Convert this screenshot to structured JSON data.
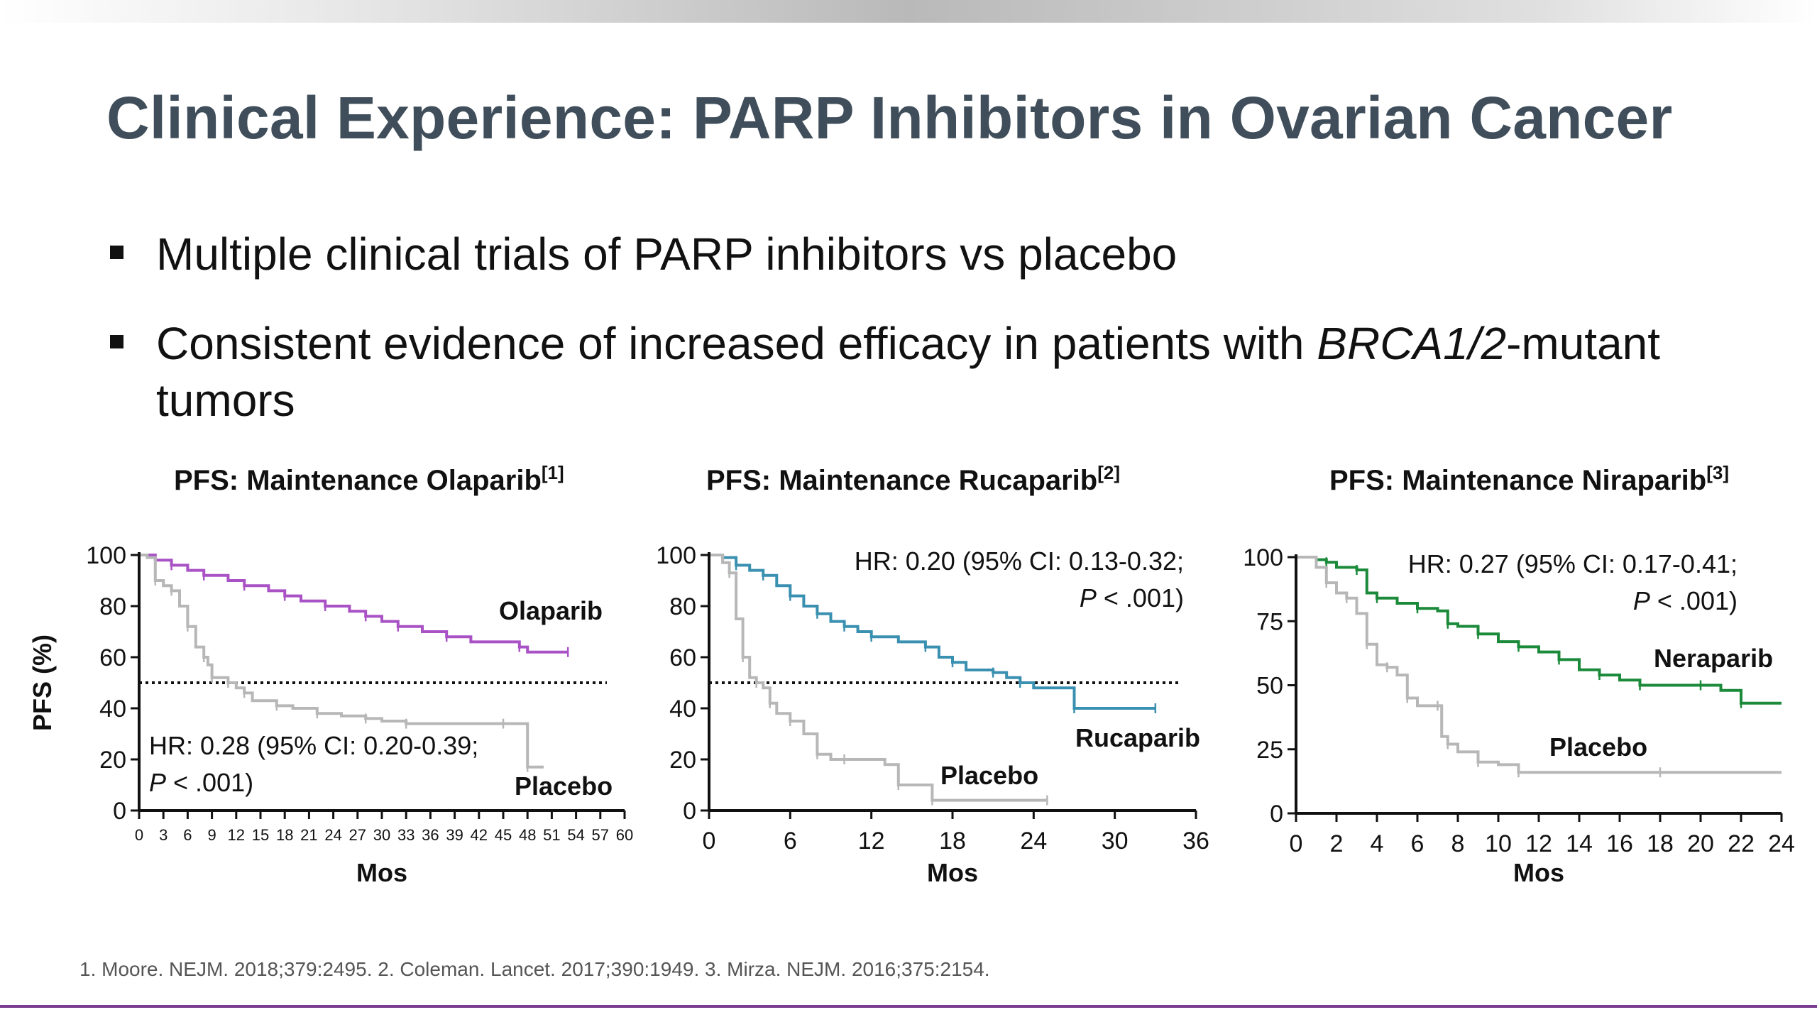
{
  "slide": {
    "title": "Clinical Experience: PARP Inhibitors in Ovarian Cancer",
    "bullets": [
      {
        "text": "Multiple clinical trials of PARP inhibitors vs placebo"
      },
      {
        "text_before": "Consistent evidence of increased efficacy in patients with ",
        "text_italic": "BRCA1/2",
        "text_after": "-mutant tumors"
      }
    ],
    "footnote": "1. Moore. NEJM. 2018;379:2495. 2. Coleman. Lancet. 2017;390:1949. 3. Mirza. NEJM. 2016;375:2154.",
    "colors": {
      "title": "#3f4e5a",
      "accent_rule": "#7a3e8f"
    }
  },
  "chart_data": [
    {
      "type": "line",
      "title": "PFS: Maintenance Olaparib",
      "title_ref": "[1]",
      "xlabel": "Mos",
      "ylabel": "PFS (%)",
      "xlim": [
        0,
        60
      ],
      "ylim": [
        0,
        100
      ],
      "xticks": [
        0,
        3,
        6,
        9,
        12,
        15,
        18,
        21,
        24,
        27,
        30,
        33,
        36,
        39,
        42,
        45,
        48,
        51,
        54,
        57,
        60
      ],
      "yticks": [
        0,
        20,
        40,
        60,
        80,
        100
      ],
      "reference_line": 50,
      "hr_text": "HR: 0.28 (95% CI: 0.20-0.39;",
      "p_italic": "P",
      "p_rest": " < .001)",
      "series": [
        {
          "name": "Olaparib",
          "color": "#a952c5",
          "points": [
            [
              0,
              100
            ],
            [
              2,
              98
            ],
            [
              4,
              96
            ],
            [
              6,
              94
            ],
            [
              8,
              92
            ],
            [
              11,
              90
            ],
            [
              13,
              88
            ],
            [
              16,
              86
            ],
            [
              18,
              84
            ],
            [
              20,
              82
            ],
            [
              23,
              80
            ],
            [
              26,
              78
            ],
            [
              28,
              76
            ],
            [
              30,
              74
            ],
            [
              32,
              72
            ],
            [
              35,
              70
            ],
            [
              38,
              68
            ],
            [
              41,
              66
            ],
            [
              47,
              64
            ],
            [
              48,
              62
            ],
            [
              53,
              62
            ]
          ]
        },
        {
          "name": "Placebo",
          "color": "#b7b7b7",
          "points": [
            [
              0,
              100
            ],
            [
              1,
              99
            ],
            [
              2,
              90
            ],
            [
              3,
              88
            ],
            [
              4,
              86
            ],
            [
              5,
              80
            ],
            [
              6,
              72
            ],
            [
              7,
              64
            ],
            [
              8,
              60
            ],
            [
              8.5,
              57
            ],
            [
              9,
              52
            ],
            [
              10,
              52
            ],
            [
              11,
              50
            ],
            [
              12,
              48
            ],
            [
              13,
              46
            ],
            [
              14,
              43
            ],
            [
              17,
              41
            ],
            [
              19,
              40
            ],
            [
              22,
              38
            ],
            [
              25,
              37
            ],
            [
              28,
              36
            ],
            [
              30,
              35
            ],
            [
              33,
              34
            ],
            [
              38,
              34
            ],
            [
              45,
              34
            ],
            [
              47,
              34
            ],
            [
              48,
              17
            ],
            [
              50,
              17
            ]
          ]
        }
      ]
    },
    {
      "type": "line",
      "title": "PFS: Maintenance Rucaparib",
      "title_ref": "[2]",
      "xlabel": "Mos",
      "ylabel": "",
      "xlim": [
        0,
        36
      ],
      "ylim": [
        0,
        100
      ],
      "xticks": [
        0,
        6,
        12,
        18,
        24,
        30,
        36
      ],
      "yticks": [
        0,
        20,
        40,
        60,
        80,
        100
      ],
      "reference_line": 50,
      "hr_text": "HR: 0.20 (95% CI: 0.13-0.32;",
      "p_italic": "P",
      "p_rest": " < .001)",
      "series": [
        {
          "name": "Rucaparib",
          "color": "#3a90b0",
          "points": [
            [
              0,
              100
            ],
            [
              1,
              99
            ],
            [
              2,
              96
            ],
            [
              3,
              94
            ],
            [
              4,
              92
            ],
            [
              5,
              88
            ],
            [
              6,
              84
            ],
            [
              7,
              80
            ],
            [
              8,
              77
            ],
            [
              9,
              74
            ],
            [
              10,
              72
            ],
            [
              11,
              70
            ],
            [
              12,
              68
            ],
            [
              14,
              66
            ],
            [
              16,
              64
            ],
            [
              17,
              60
            ],
            [
              18,
              58
            ],
            [
              19,
              55
            ],
            [
              21,
              54
            ],
            [
              22,
              52
            ],
            [
              23,
              50
            ],
            [
              24,
              48
            ],
            [
              27,
              40
            ],
            [
              30,
              40
            ],
            [
              33,
              40
            ]
          ]
        },
        {
          "name": "Placebo",
          "color": "#b7b7b7",
          "points": [
            [
              0,
              100
            ],
            [
              1,
              97
            ],
            [
              1.5,
              93
            ],
            [
              2,
              75
            ],
            [
              2.5,
              60
            ],
            [
              3,
              52
            ],
            [
              3.5,
              50
            ],
            [
              4,
              48
            ],
            [
              4.5,
              42
            ],
            [
              5,
              38
            ],
            [
              6,
              35
            ],
            [
              7,
              30
            ],
            [
              8,
              22
            ],
            [
              9,
              20
            ],
            [
              10,
              20
            ],
            [
              13,
              18
            ],
            [
              14,
              10
            ],
            [
              16,
              10
            ],
            [
              16.5,
              4
            ],
            [
              20,
              4
            ],
            [
              25,
              4
            ]
          ]
        }
      ]
    },
    {
      "type": "line",
      "title": "PFS: Maintenance Niraparib",
      "title_ref": "[3]",
      "xlabel": "Mos",
      "ylabel": "",
      "xlim": [
        0,
        24
      ],
      "ylim": [
        0,
        100
      ],
      "xticks": [
        0,
        2,
        4,
        6,
        8,
        10,
        12,
        14,
        16,
        18,
        20,
        22,
        24
      ],
      "yticks": [
        0,
        25,
        50,
        75,
        100
      ],
      "reference_line": null,
      "hr_text": "HR: 0.27 (95% CI: 0.17-0.41;",
      "p_italic": "P",
      "p_rest": " < .001)",
      "series": [
        {
          "name": "Neraparib",
          "color": "#1b8a3a",
          "points": [
            [
              0,
              100
            ],
            [
              1,
              99
            ],
            [
              1.5,
              98
            ],
            [
              2,
              96
            ],
            [
              3,
              95
            ],
            [
              3.5,
              86
            ],
            [
              4,
              84
            ],
            [
              5,
              82
            ],
            [
              6,
              80
            ],
            [
              7,
              79
            ],
            [
              7.5,
              74
            ],
            [
              8,
              73
            ],
            [
              9,
              70
            ],
            [
              10,
              67
            ],
            [
              11,
              65
            ],
            [
              12,
              63
            ],
            [
              13,
              60
            ],
            [
              14,
              56
            ],
            [
              15,
              54
            ],
            [
              16,
              52
            ],
            [
              17,
              50
            ],
            [
              19,
              50
            ],
            [
              20,
              50
            ],
            [
              21,
              48
            ],
            [
              22,
              43
            ],
            [
              24,
              43
            ]
          ]
        },
        {
          "name": "Placebo",
          "color": "#b7b7b7",
          "points": [
            [
              0,
              100
            ],
            [
              1,
              96
            ],
            [
              1.5,
              90
            ],
            [
              2,
              86
            ],
            [
              2.5,
              84
            ],
            [
              3,
              78
            ],
            [
              3.5,
              66
            ],
            [
              4,
              58
            ],
            [
              4.5,
              57
            ],
            [
              5,
              54
            ],
            [
              5.5,
              45
            ],
            [
              6,
              42
            ],
            [
              7,
              42
            ],
            [
              7.2,
              30
            ],
            [
              7.5,
              27
            ],
            [
              8,
              24
            ],
            [
              9,
              20
            ],
            [
              10,
              19
            ],
            [
              11,
              16
            ],
            [
              12,
              16
            ],
            [
              18,
              16
            ],
            [
              24,
              16
            ]
          ]
        }
      ]
    }
  ]
}
